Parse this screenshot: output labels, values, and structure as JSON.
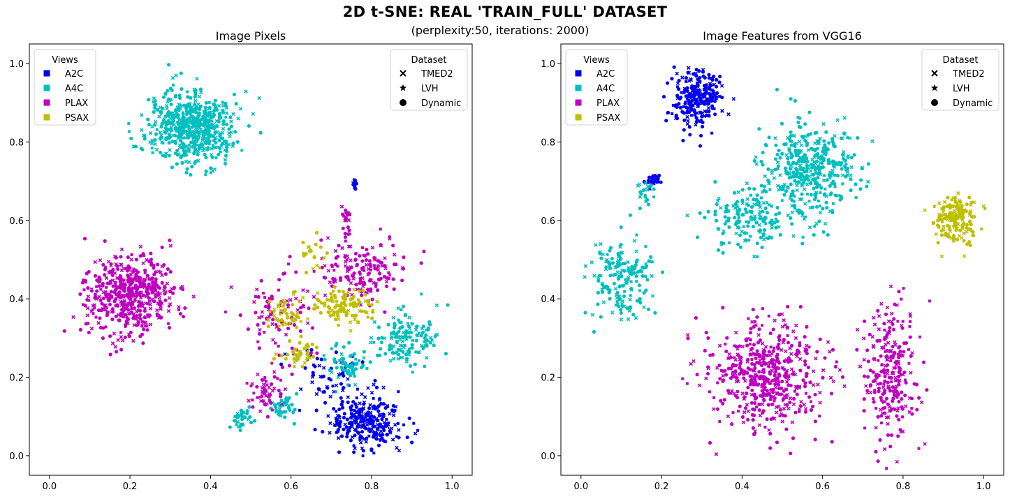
{
  "figure": {
    "title": "2D t-SNE: REAL 'TRAIN_FULL' DATASET",
    "subtitle": "(perplexity:50, iterations: 2000)"
  },
  "colors": {
    "A2C": "#0000ee",
    "A4C": "#00bfbf",
    "PLAX": "#bf00bf",
    "PSAX": "#bfbf00"
  },
  "chart_data": [
    {
      "type": "scatter",
      "title": "Image Pixels",
      "xlim": [
        -0.05,
        1.05
      ],
      "ylim": [
        -0.05,
        1.05
      ],
      "xticks": [
        "0.0",
        "0.2",
        "0.4",
        "0.6",
        "0.8",
        "1.0"
      ],
      "yticks": [
        "0.0",
        "0.2",
        "0.4",
        "0.6",
        "0.8",
        "1.0"
      ],
      "grid": false,
      "legends": [
        {
          "title": "Views",
          "placement": "upper-left",
          "entries": [
            "A2C",
            "A4C",
            "PLAX",
            "PSAX"
          ]
        },
        {
          "title": "Dataset",
          "placement": "upper-right",
          "entries": [
            "TMED2",
            "LVH",
            "Dynamic"
          ]
        }
      ],
      "series": [
        {
          "name": "A2C",
          "clusters": [
            {
              "center": [
                0.79,
                0.09
              ],
              "spread": [
                0.09,
                0.07
              ],
              "count": 260
            },
            {
              "center": [
                0.7,
                0.2
              ],
              "spread": [
                0.08,
                0.08
              ],
              "count": 60
            },
            {
              "center": [
                0.76,
                0.69
              ],
              "spread": [
                0.01,
                0.01
              ],
              "count": 10
            }
          ]
        },
        {
          "name": "A4C",
          "clusters": [
            {
              "center": [
                0.35,
                0.84
              ],
              "spread": [
                0.11,
                0.09
              ],
              "count": 600
            },
            {
              "center": [
                0.89,
                0.3
              ],
              "spread": [
                0.08,
                0.07
              ],
              "count": 140
            },
            {
              "center": [
                0.74,
                0.23
              ],
              "spread": [
                0.05,
                0.05
              ],
              "count": 60
            },
            {
              "center": [
                0.58,
                0.12
              ],
              "spread": [
                0.04,
                0.03
              ],
              "count": 40
            },
            {
              "center": [
                0.47,
                0.09
              ],
              "spread": [
                0.03,
                0.03
              ],
              "count": 30
            }
          ]
        },
        {
          "name": "PLAX",
          "clusters": [
            {
              "center": [
                0.2,
                0.41
              ],
              "spread": [
                0.11,
                0.1
              ],
              "count": 520
            },
            {
              "center": [
                0.77,
                0.47
              ],
              "spread": [
                0.11,
                0.08
              ],
              "count": 170
            },
            {
              "center": [
                0.56,
                0.35
              ],
              "spread": [
                0.1,
                0.1
              ],
              "count": 90
            },
            {
              "center": [
                0.54,
                0.16
              ],
              "spread": [
                0.06,
                0.05
              ],
              "count": 60
            },
            {
              "center": [
                0.74,
                0.6
              ],
              "spread": [
                0.02,
                0.05
              ],
              "count": 20
            }
          ]
        },
        {
          "name": "PSAX",
          "clusters": [
            {
              "center": [
                0.73,
                0.38
              ],
              "spread": [
                0.07,
                0.05
              ],
              "count": 110
            },
            {
              "center": [
                0.59,
                0.36
              ],
              "spread": [
                0.04,
                0.05
              ],
              "count": 50
            },
            {
              "center": [
                0.62,
                0.26
              ],
              "spread": [
                0.04,
                0.03
              ],
              "count": 40
            },
            {
              "center": [
                0.65,
                0.52
              ],
              "spread": [
                0.03,
                0.04
              ],
              "count": 20
            }
          ]
        }
      ]
    },
    {
      "type": "scatter",
      "title": "Image Features from VGG16",
      "xlim": [
        -0.05,
        1.05
      ],
      "ylim": [
        -0.05,
        1.05
      ],
      "xticks": [
        "0.0",
        "0.2",
        "0.4",
        "0.6",
        "0.8",
        "1.0"
      ],
      "yticks": [
        "0.0",
        "0.2",
        "0.4",
        "0.6",
        "0.8",
        "1.0"
      ],
      "grid": false,
      "legends": [
        {
          "title": "Views",
          "placement": "upper-left",
          "entries": [
            "A2C",
            "A4C",
            "PLAX",
            "PSAX"
          ]
        },
        {
          "title": "Dataset",
          "placement": "upper-right",
          "entries": [
            "TMED2",
            "LVH",
            "Dynamic"
          ]
        }
      ],
      "series": [
        {
          "name": "A2C",
          "clusters": [
            {
              "center": [
                0.29,
                0.91
              ],
              "spread": [
                0.06,
                0.07
              ],
              "count": 240
            },
            {
              "center": [
                0.18,
                0.7
              ],
              "spread": [
                0.02,
                0.02
              ],
              "count": 25
            }
          ]
        },
        {
          "name": "A4C",
          "clusters": [
            {
              "center": [
                0.57,
                0.73
              ],
              "spread": [
                0.11,
                0.12
              ],
              "count": 420
            },
            {
              "center": [
                0.42,
                0.61
              ],
              "spread": [
                0.1,
                0.07
              ],
              "count": 170
            },
            {
              "center": [
                0.1,
                0.45
              ],
              "spread": [
                0.08,
                0.1
              ],
              "count": 180
            },
            {
              "center": [
                0.16,
                0.67
              ],
              "spread": [
                0.02,
                0.03
              ],
              "count": 20
            }
          ]
        },
        {
          "name": "PLAX",
          "clusters": [
            {
              "center": [
                0.46,
                0.21
              ],
              "spread": [
                0.14,
                0.14
              ],
              "count": 520
            },
            {
              "center": [
                0.77,
                0.22
              ],
              "spread": [
                0.07,
                0.19
              ],
              "count": 260
            }
          ]
        },
        {
          "name": "PSAX",
          "clusters": [
            {
              "center": [
                0.93,
                0.6
              ],
              "spread": [
                0.05,
                0.06
              ],
              "count": 170
            }
          ]
        }
      ]
    }
  ]
}
